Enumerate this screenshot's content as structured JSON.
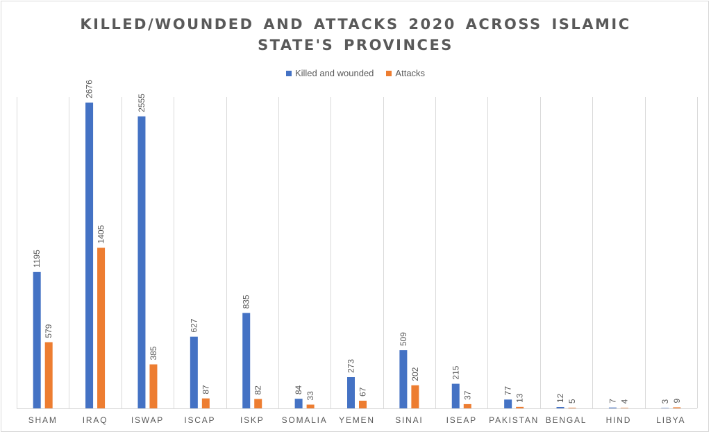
{
  "chart_data": {
    "type": "bar",
    "title_lines": [
      "KILLED/WOUNDED AND ATTACKS 2020 ACROSS ISLAMIC",
      "STATE'S PROVINCES"
    ],
    "xlabel": "",
    "ylabel": "",
    "ylim": [
      0,
      2900
    ],
    "grid": "vertical category separators",
    "legend_position": "top",
    "categories": [
      "SHAM",
      "IRAQ",
      "ISWAP",
      "ISCAP",
      "ISKP",
      "SOMALIA",
      "YEMEN",
      "SINAI",
      "ISEAP",
      "PAKISTAN",
      "BENGAL",
      "HIND",
      "LIBYA"
    ],
    "series": [
      {
        "name": "Killed and wounded",
        "color": "#4472c4",
        "values": [
          1195,
          2676,
          2555,
          627,
          835,
          84,
          273,
          509,
          215,
          77,
          12,
          7,
          3
        ]
      },
      {
        "name": "Attacks",
        "color": "#ed7d31",
        "values": [
          579,
          1405,
          385,
          87,
          82,
          33,
          67,
          202,
          37,
          13,
          5,
          4,
          9
        ]
      }
    ]
  }
}
